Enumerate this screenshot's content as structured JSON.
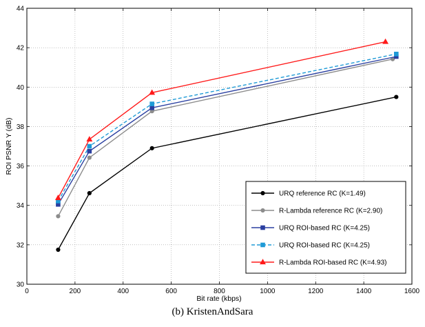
{
  "chart_data": {
    "type": "line",
    "xlabel": "Bit rate (kbps)",
    "ylabel": "ROI PSNR Y (dB)",
    "xlim": [
      0,
      1600
    ],
    "ylim": [
      30,
      44
    ],
    "xticks": [
      0,
      200,
      400,
      600,
      800,
      1000,
      1200,
      1400,
      1600
    ],
    "yticks": [
      30,
      32,
      34,
      36,
      38,
      40,
      42,
      44
    ],
    "grid": "dotted",
    "legend_position": "bottom-right",
    "series": [
      {
        "name": "URQ reference RC (K=1.49)",
        "color": "#000000",
        "marker": "circle",
        "dash": "solid",
        "x": [
          130,
          260,
          520,
          1535
        ],
        "y": [
          31.75,
          34.62,
          36.9,
          39.5
        ]
      },
      {
        "name": "R-Lambda reference RC (K=2.90)",
        "color": "#8c8c8c",
        "marker": "circle",
        "dash": "solid",
        "x": [
          130,
          260,
          520,
          1520
        ],
        "y": [
          33.45,
          36.42,
          38.78,
          41.42
        ]
      },
      {
        "name": "URQ ROI-based RC (K=4.25)",
        "color": "#2a3fa0",
        "marker": "square",
        "dash": "solid",
        "x": [
          130,
          260,
          520,
          1535
        ],
        "y": [
          34.05,
          36.75,
          38.95,
          41.55
        ]
      },
      {
        "name": "URQ ROI-based RC (K=4.25)",
        "color": "#1e9ad6",
        "marker": "square",
        "dash": "dashed",
        "x": [
          130,
          260,
          520,
          1535
        ],
        "y": [
          34.22,
          37.0,
          39.15,
          41.68
        ]
      },
      {
        "name": "R-Lambda ROI-based RC (K=4.93)",
        "color": "#ff1a1a",
        "marker": "triangle",
        "dash": "solid",
        "x": [
          130,
          260,
          520,
          1490
        ],
        "y": [
          34.38,
          37.35,
          39.72,
          42.3
        ]
      }
    ]
  },
  "caption": "(b) KristenAndSara"
}
